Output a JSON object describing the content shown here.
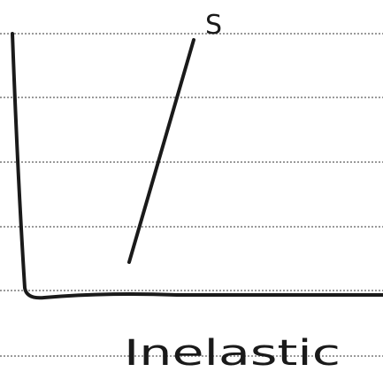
{
  "labels": {
    "curve": "S",
    "caption": "Inelastic"
  }
}
